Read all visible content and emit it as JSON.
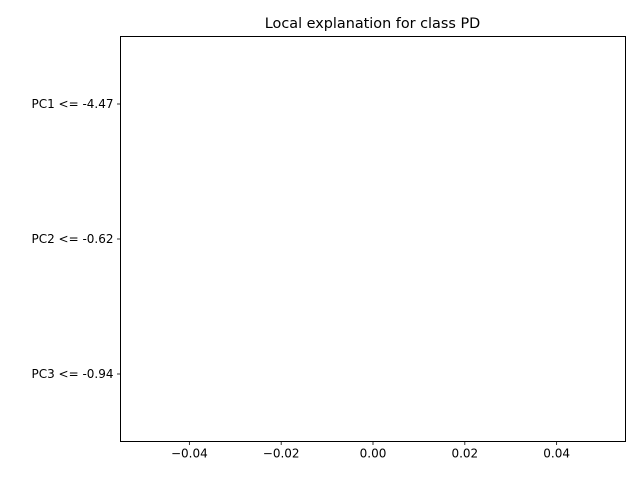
{
  "chart_data": {
    "type": "bar",
    "orientation": "horizontal",
    "title": "Local explanation for class PD",
    "xlabel": "",
    "ylabel": "",
    "categories": [
      "PC3 <= -0.94",
      "PC2 <= -0.62",
      "PC1 <= -4.47"
    ],
    "values": [
      0,
      0,
      0
    ],
    "xlim": [
      -0.055,
      0.055
    ],
    "xticks": [
      -0.04,
      -0.02,
      0.0,
      0.02,
      0.04
    ],
    "xtick_labels": [
      "−0.04",
      "−0.02",
      "0.00",
      "0.02",
      "0.04"
    ],
    "grid": false,
    "bar_colors": {
      "positive": "#008000",
      "negative": "#ff0000"
    }
  }
}
